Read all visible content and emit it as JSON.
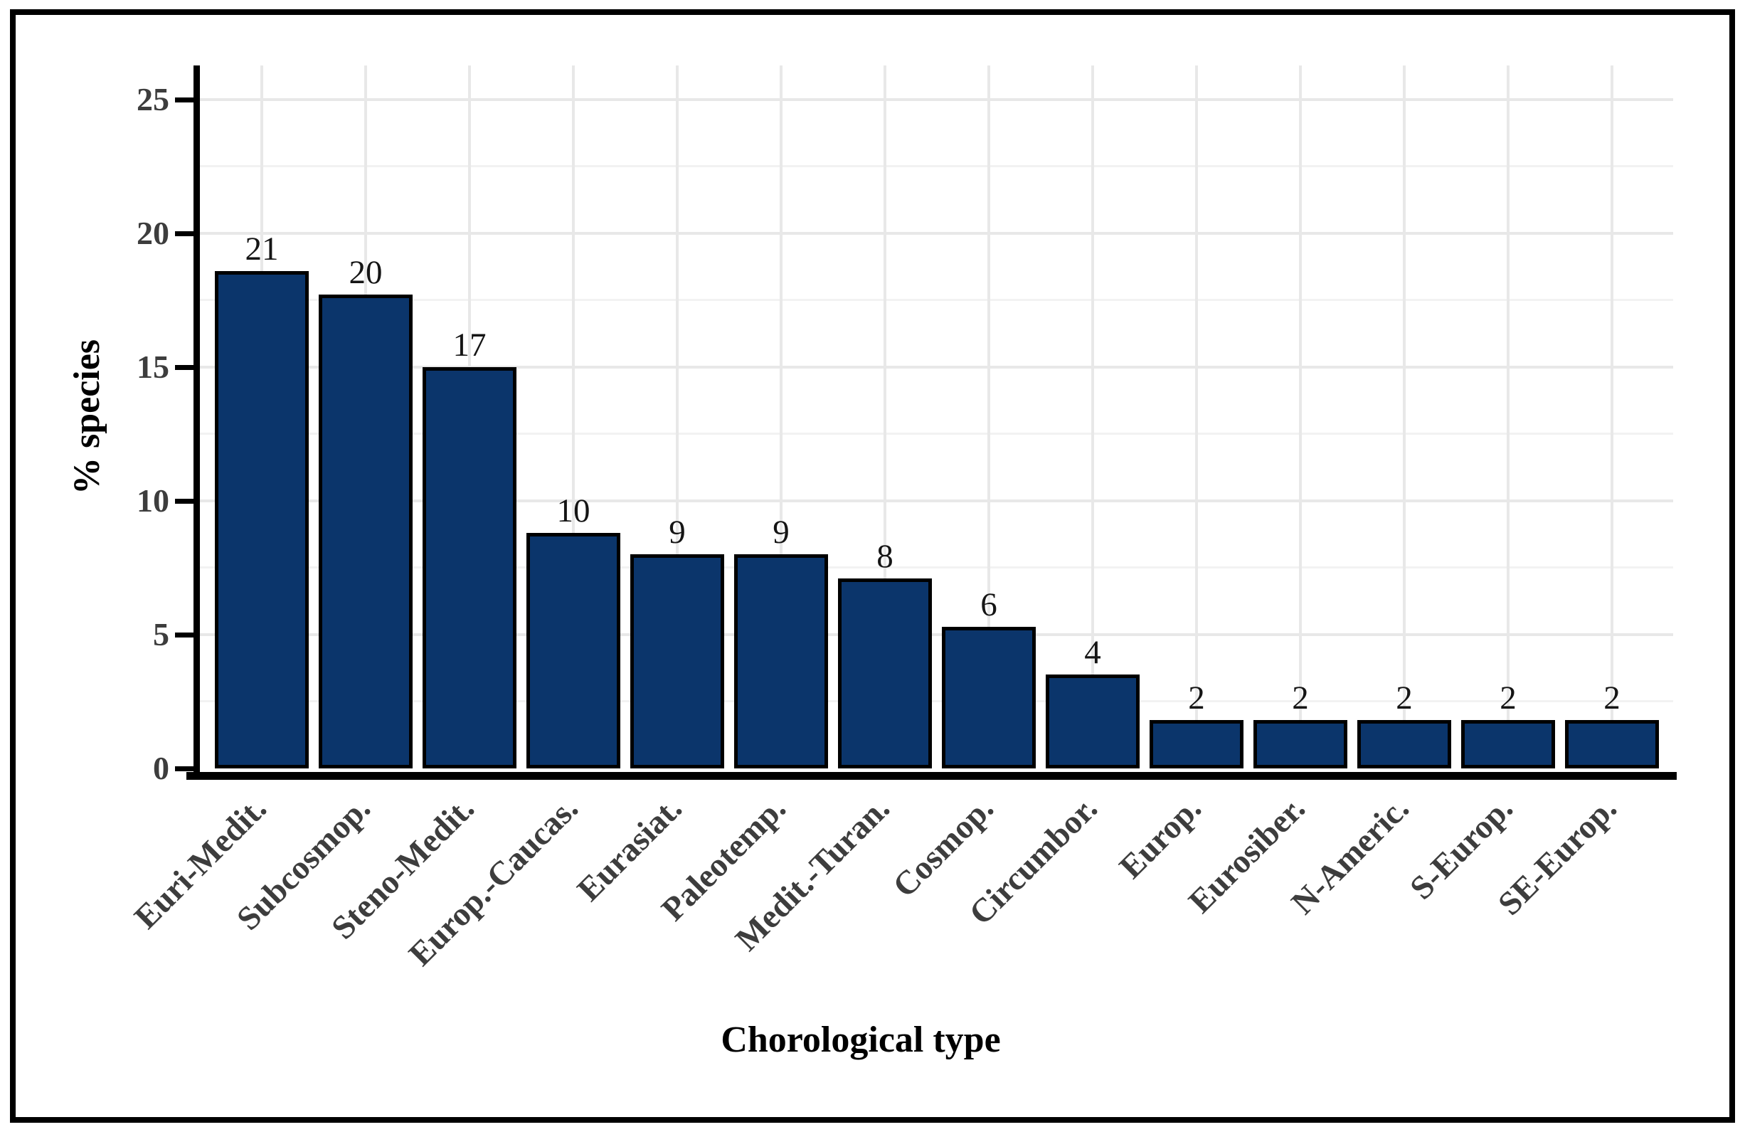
{
  "chart_data": {
    "type": "bar",
    "title": "",
    "xlabel": "Chorological type",
    "ylabel": "% species",
    "categories": [
      "Euri-Medit.",
      "Subcosmop.",
      "Steno-Medit.",
      "Europ.-Caucas.",
      "Eurasiat.",
      "Paleotemp.",
      "Medit.-Turan.",
      "Cosmop.",
      "Circumbor.",
      "Europ.",
      "Eurosiber.",
      "N-Americ.",
      "S-Europ.",
      "SE-Europ."
    ],
    "bar_labels": [
      "21",
      "20",
      "17",
      "10",
      "9",
      "9",
      "8",
      "6",
      "4",
      "2",
      "2",
      "2",
      "2",
      "2"
    ],
    "values": [
      18.6,
      17.7,
      15.0,
      8.8,
      8.0,
      8.0,
      7.1,
      5.3,
      3.5,
      1.8,
      1.8,
      1.8,
      1.8,
      1.8
    ],
    "ylim": [
      0,
      26.2
    ],
    "yticks": [
      0,
      5,
      10,
      15,
      20,
      25
    ],
    "yticks_minor": [
      2.5,
      7.5,
      12.5,
      17.5,
      22.5
    ],
    "grid": {
      "horizontal_major": true,
      "horizontal_minor": true,
      "vertical_at_category_centers": true
    },
    "legend": "none"
  },
  "colors": {
    "bar_fill": "#0b356b",
    "bar_border": "#000000",
    "axis_spine": "#000000",
    "tick_label": "#3d3d3d",
    "category_label": "#3d3d3d",
    "value_label": "#151515",
    "grid_major": "#e8e8e8",
    "grid_minor": "#f2f2f2",
    "figure_border": "#000000",
    "background": "#ffffff"
  }
}
